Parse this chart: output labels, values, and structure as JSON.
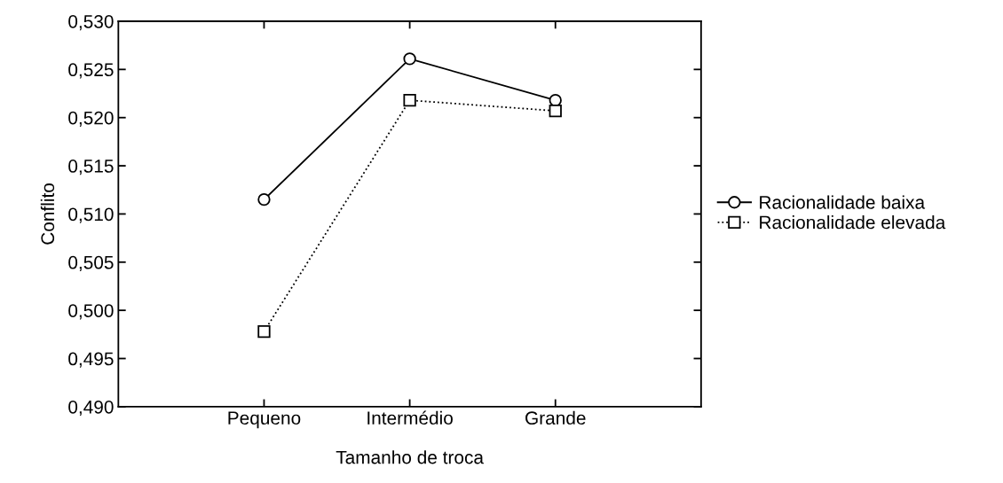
{
  "chart_data": {
    "type": "line",
    "xlabel": "Tamanho de troca",
    "ylabel": "Conflito",
    "categories": [
      "Pequeno",
      "Intermédio",
      "Grande"
    ],
    "series": [
      {
        "name": "Racionalidade baixa",
        "color": "#000000",
        "marker": "circle",
        "line_style": "solid",
        "values": [
          0.5115,
          0.5261,
          0.5218
        ]
      },
      {
        "name": "Racionalidade elevada",
        "color": "#000000",
        "marker": "square",
        "line_style": "dotted",
        "values": [
          0.4978,
          0.5218,
          0.5207
        ]
      }
    ],
    "ylim": [
      0.49,
      0.53
    ],
    "yticks": [
      {
        "value": 0.49,
        "label": "0,490"
      },
      {
        "value": 0.495,
        "label": "0,495"
      },
      {
        "value": 0.5,
        "label": "0,500"
      },
      {
        "value": 0.505,
        "label": "0,505"
      },
      {
        "value": 0.51,
        "label": "0,510"
      },
      {
        "value": 0.515,
        "label": "0,515"
      },
      {
        "value": 0.52,
        "label": "0,520"
      },
      {
        "value": 0.525,
        "label": "0,525"
      },
      {
        "value": 0.53,
        "label": "0,530"
      }
    ],
    "grid": false,
    "legend": "right"
  }
}
